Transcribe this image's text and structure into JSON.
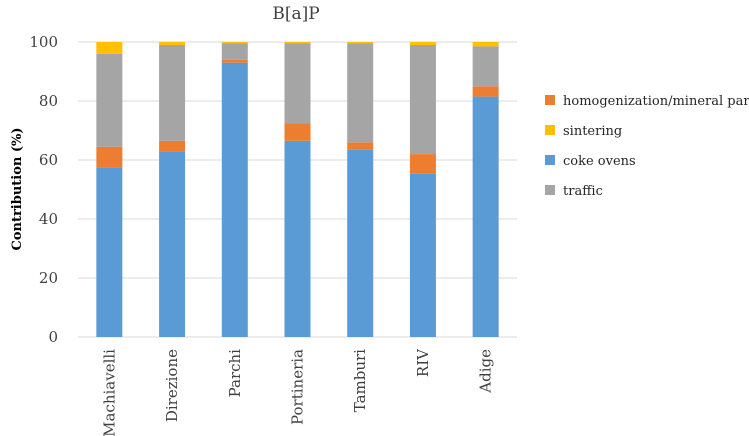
{
  "chart_data": {
    "type": "bar",
    "stacked": true,
    "title": "B[a]P",
    "xlabel": "",
    "ylabel": "Contribution (%)",
    "ylim": [
      0,
      100
    ],
    "yticks": [
      0,
      20,
      40,
      60,
      80,
      100
    ],
    "grid": true,
    "legend_position": "right",
    "categories": [
      "Machiavelli",
      "Direzione",
      "Parchi",
      "Portineria",
      "Tamburi",
      "RIV",
      "Adige"
    ],
    "series": [
      {
        "name": "coke ovens",
        "color": "#5b9bd5",
        "values": [
          57.5,
          63,
          93,
          66.5,
          63.5,
          55.5,
          81.5
        ]
      },
      {
        "name": "homogenization/mineral park",
        "color": "#ed7d31",
        "values": [
          7,
          3.5,
          1,
          6,
          2.5,
          6.5,
          3.5
        ]
      },
      {
        "name": "traffic",
        "color": "#a5a5a5",
        "values": [
          31.5,
          32.5,
          5.5,
          27,
          33.5,
          37,
          13.5
        ]
      },
      {
        "name": "sintering",
        "color": "#ffc000",
        "values": [
          4,
          1,
          0.5,
          0.5,
          0.5,
          1,
          1.5
        ]
      }
    ],
    "legend_order": [
      "homogenization/mineral park",
      "sintering",
      "coke ovens",
      "traffic"
    ]
  }
}
